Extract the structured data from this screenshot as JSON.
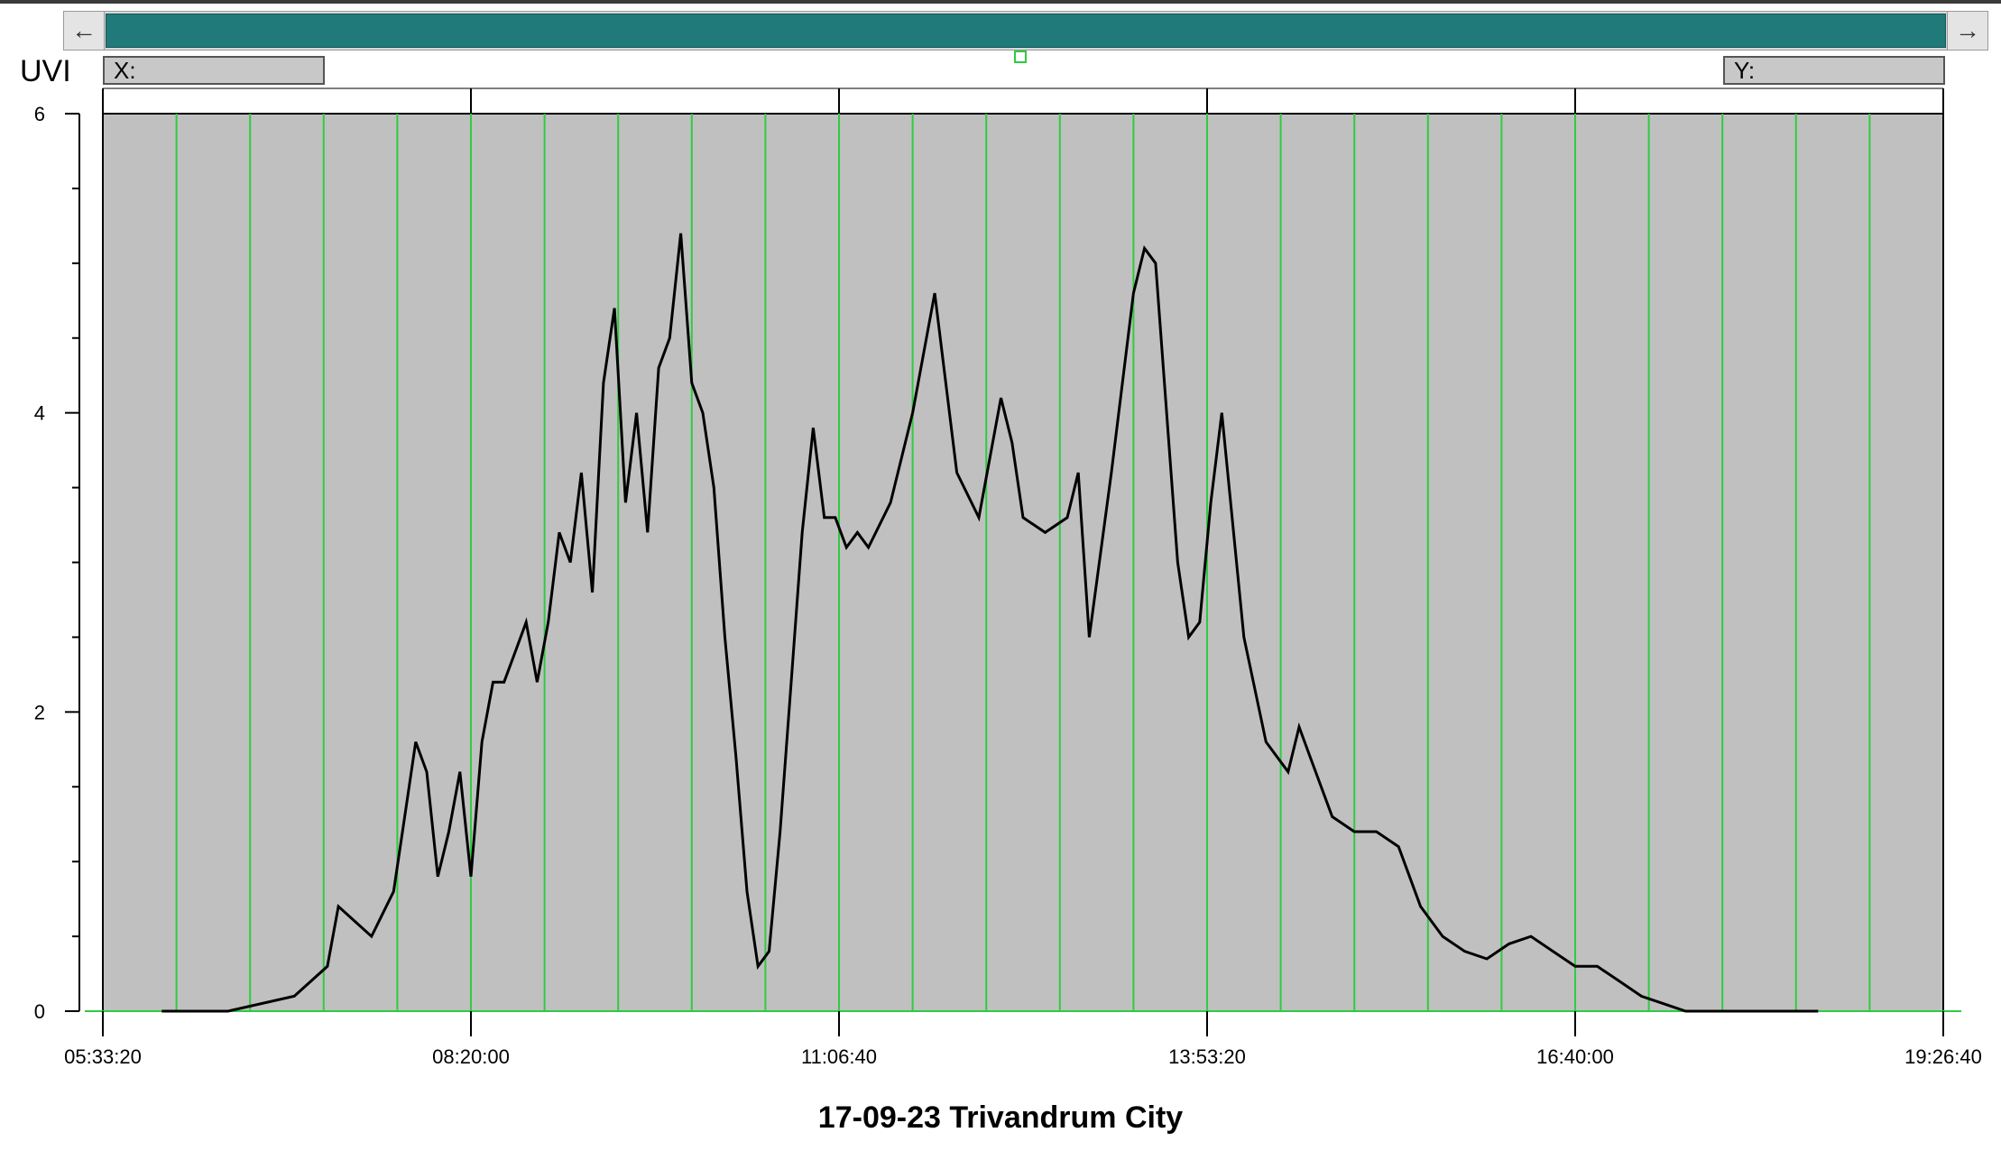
{
  "window": {
    "scroll_left_icon": "arrow-left-icon",
    "scroll_right_icon": "arrow-right-icon",
    "left_arrow_glyph": "←",
    "right_arrow_glyph": "→"
  },
  "readouts": {
    "x_label": "X:",
    "y_label": "Y:"
  },
  "colors": {
    "plot_bg": "#c0c0c0",
    "grid": "#2ecc40",
    "line": "#000000",
    "scroll_thumb": "#217a7a"
  },
  "chart_data": {
    "type": "line",
    "title": "17-09-23 Trivandrum City",
    "ylabel": "UVI",
    "xlabel": "",
    "ylim": [
      0,
      6
    ],
    "xlim": [
      "05:33:20",
      "19:26:40"
    ],
    "x_tick_labels": [
      "05:33:20",
      "08:20:00",
      "11:06:40",
      "13:53:20",
      "16:40:00",
      "19:26:40"
    ],
    "y_tick_labels": [
      "0",
      "2",
      "4",
      "6"
    ],
    "grid": true,
    "series": [
      {
        "x": [
          "06:00",
          "06:30",
          "07:00",
          "07:15",
          "07:20",
          "07:35",
          "07:45",
          "07:50",
          "07:55",
          "08:00",
          "08:05",
          "08:10",
          "08:15",
          "08:20",
          "08:25",
          "08:30",
          "08:35",
          "08:40",
          "08:45",
          "08:50",
          "08:55",
          "09:00",
          "09:05",
          "09:10",
          "09:15",
          "09:20",
          "09:25",
          "09:30",
          "09:35",
          "09:40",
          "09:45",
          "09:50",
          "09:55",
          "10:00",
          "10:05",
          "10:10",
          "10:15",
          "10:20",
          "10:25",
          "10:30",
          "10:35",
          "10:40",
          "10:45",
          "10:50",
          "10:55",
          "11:00",
          "11:05",
          "11:10",
          "11:15",
          "11:20",
          "11:30",
          "11:40",
          "11:50",
          "12:00",
          "12:10",
          "12:20",
          "12:25",
          "12:30",
          "12:40",
          "12:50",
          "12:55",
          "13:00",
          "13:10",
          "13:20",
          "13:25",
          "13:30",
          "13:40",
          "13:45",
          "13:50",
          "13:55",
          "14:00",
          "14:10",
          "14:20",
          "14:30",
          "14:35",
          "14:40",
          "14:50",
          "15:00",
          "15:10",
          "15:20",
          "15:30",
          "15:40",
          "15:50",
          "16:00",
          "16:10",
          "16:20",
          "16:30",
          "16:40",
          "16:50",
          "17:00",
          "17:10",
          "17:20",
          "17:30",
          "17:40",
          "17:50",
          "18:00",
          "18:15",
          "18:30"
        ],
        "y": [
          0,
          0,
          0.1,
          0.3,
          0.7,
          0.5,
          0.8,
          1.3,
          1.8,
          1.6,
          0.9,
          1.2,
          1.6,
          0.9,
          1.8,
          2.2,
          2.2,
          2.4,
          2.6,
          2.2,
          2.6,
          3.2,
          3.0,
          3.6,
          2.8,
          4.2,
          4.7,
          3.4,
          4.0,
          3.2,
          4.3,
          4.5,
          5.2,
          4.2,
          4.0,
          3.5,
          2.5,
          1.7,
          0.8,
          0.3,
          0.4,
          1.2,
          2.2,
          3.2,
          3.9,
          3.3,
          3.3,
          3.1,
          3.2,
          3.1,
          3.4,
          4.0,
          4.8,
          3.6,
          3.3,
          4.1,
          3.8,
          3.3,
          3.2,
          3.3,
          3.6,
          2.5,
          3.6,
          4.8,
          5.1,
          5.0,
          3.0,
          2.5,
          2.6,
          3.4,
          4.0,
          2.5,
          1.8,
          1.6,
          1.9,
          1.7,
          1.3,
          1.2,
          1.2,
          1.1,
          0.7,
          0.5,
          0.4,
          0.35,
          0.45,
          0.5,
          0.4,
          0.3,
          0.3,
          0.2,
          0.1,
          0.05,
          0,
          0,
          0,
          0,
          0,
          0
        ]
      }
    ]
  }
}
